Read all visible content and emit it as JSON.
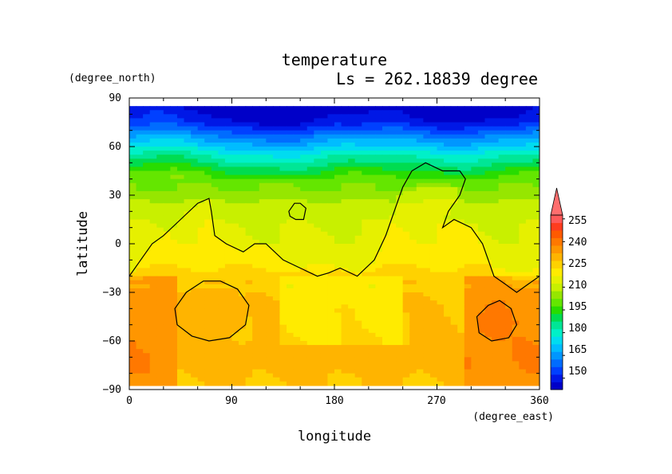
{
  "chart_data": {
    "type": "heatmap",
    "title": "temperature",
    "subtitle": "Ls = 262.18839 degree",
    "xlabel": "longitude",
    "ylabel": "latitude",
    "xunit": "(degree_east)",
    "yunit": "(degree_north)",
    "xlim": [
      0,
      360
    ],
    "ylim": [
      -90,
      90
    ],
    "data_lat_range": [
      -85,
      85
    ],
    "xticks": [
      "0",
      "90",
      "180",
      "270",
      "360"
    ],
    "xtick_values": [
      0,
      90,
      180,
      270,
      360
    ],
    "yticks": [
      "90",
      "60",
      "30",
      "0",
      "−30",
      "−60",
      "−90"
    ],
    "ytick_values": [
      90,
      60,
      30,
      0,
      -30,
      -60,
      -90
    ],
    "colorbar": {
      "labels": [
        "255",
        "240",
        "225",
        "210",
        "195",
        "180",
        "165",
        "150"
      ],
      "label_values": [
        255,
        240,
        225,
        210,
        195,
        180,
        165,
        150
      ],
      "levels": [
        145,
        150,
        155,
        160,
        165,
        170,
        175,
        180,
        185,
        190,
        195,
        200,
        205,
        210,
        215,
        220,
        225,
        230,
        235,
        240,
        245,
        250,
        255,
        260
      ],
      "colors": [
        "#0000c8",
        "#0018e6",
        "#0040ff",
        "#006cff",
        "#0096ff",
        "#00bcff",
        "#00dcf0",
        "#00f0c8",
        "#00e696",
        "#00dc50",
        "#28dc00",
        "#64e600",
        "#96e600",
        "#c8f000",
        "#e6f000",
        "#ffeb00",
        "#ffd200",
        "#ffb400",
        "#ff9600",
        "#ff7800",
        "#ff5a00",
        "#ff3c1e",
        "#ff5a5a"
      ],
      "extend": "max"
    },
    "zonal_mean_temperature": {
      "lat": [
        85,
        75,
        70,
        65,
        60,
        55,
        50,
        45,
        40,
        35,
        30,
        25,
        20,
        10,
        0,
        -10,
        -20,
        -30,
        -40,
        -50,
        -60,
        -70,
        -80,
        -85
      ],
      "value": [
        146,
        152,
        160,
        168,
        175,
        183,
        189,
        196,
        201,
        206,
        210,
        213,
        215,
        217,
        218,
        220,
        224,
        229,
        230,
        230,
        231,
        232,
        231,
        230
      ]
    },
    "contours": [
      {
        "name": "continent",
        "closed": false,
        "points": [
          [
            0,
            -20
          ],
          [
            10,
            -10
          ],
          [
            20,
            0
          ],
          [
            30,
            5
          ],
          [
            45,
            15
          ],
          [
            60,
            25
          ],
          [
            70,
            28
          ],
          [
            72,
            20
          ],
          [
            75,
            5
          ],
          [
            85,
            0
          ],
          [
            100,
            -5
          ],
          [
            110,
            0
          ],
          [
            120,
            0
          ],
          [
            135,
            -10
          ],
          [
            150,
            -15
          ],
          [
            165,
            -20
          ],
          [
            175,
            -18
          ],
          [
            185,
            -15
          ],
          [
            200,
            -20
          ],
          [
            215,
            -10
          ],
          [
            225,
            5
          ],
          [
            230,
            15
          ],
          [
            235,
            25
          ],
          [
            240,
            35
          ],
          [
            248,
            45
          ],
          [
            260,
            50
          ],
          [
            275,
            45
          ],
          [
            290,
            45
          ],
          [
            295,
            40
          ],
          [
            290,
            30
          ],
          [
            280,
            20
          ],
          [
            275,
            10
          ],
          [
            285,
            15
          ],
          [
            300,
            10
          ],
          [
            310,
            0
          ],
          [
            315,
            -10
          ],
          [
            320,
            -20
          ],
          [
            330,
            -25
          ],
          [
            340,
            -30
          ],
          [
            350,
            -25
          ],
          [
            360,
            -20
          ]
        ]
      },
      {
        "name": "island",
        "closed": true,
        "points": [
          [
            140,
            20
          ],
          [
            145,
            25
          ],
          [
            150,
            25
          ],
          [
            155,
            22
          ],
          [
            153,
            15
          ],
          [
            146,
            15
          ],
          [
            141,
            17
          ]
        ]
      },
      {
        "name": "crater-left",
        "closed": true,
        "points": [
          [
            40,
            -40
          ],
          [
            50,
            -30
          ],
          [
            65,
            -23
          ],
          [
            80,
            -23
          ],
          [
            95,
            -28
          ],
          [
            105,
            -38
          ],
          [
            102,
            -50
          ],
          [
            88,
            -58
          ],
          [
            70,
            -60
          ],
          [
            55,
            -57
          ],
          [
            42,
            -50
          ]
        ]
      },
      {
        "name": "crater-right",
        "closed": true,
        "points": [
          [
            305,
            -45
          ],
          [
            315,
            -38
          ],
          [
            325,
            -35
          ],
          [
            335,
            -40
          ],
          [
            340,
            -50
          ],
          [
            333,
            -58
          ],
          [
            318,
            -60
          ],
          [
            307,
            -55
          ]
        ]
      }
    ]
  }
}
